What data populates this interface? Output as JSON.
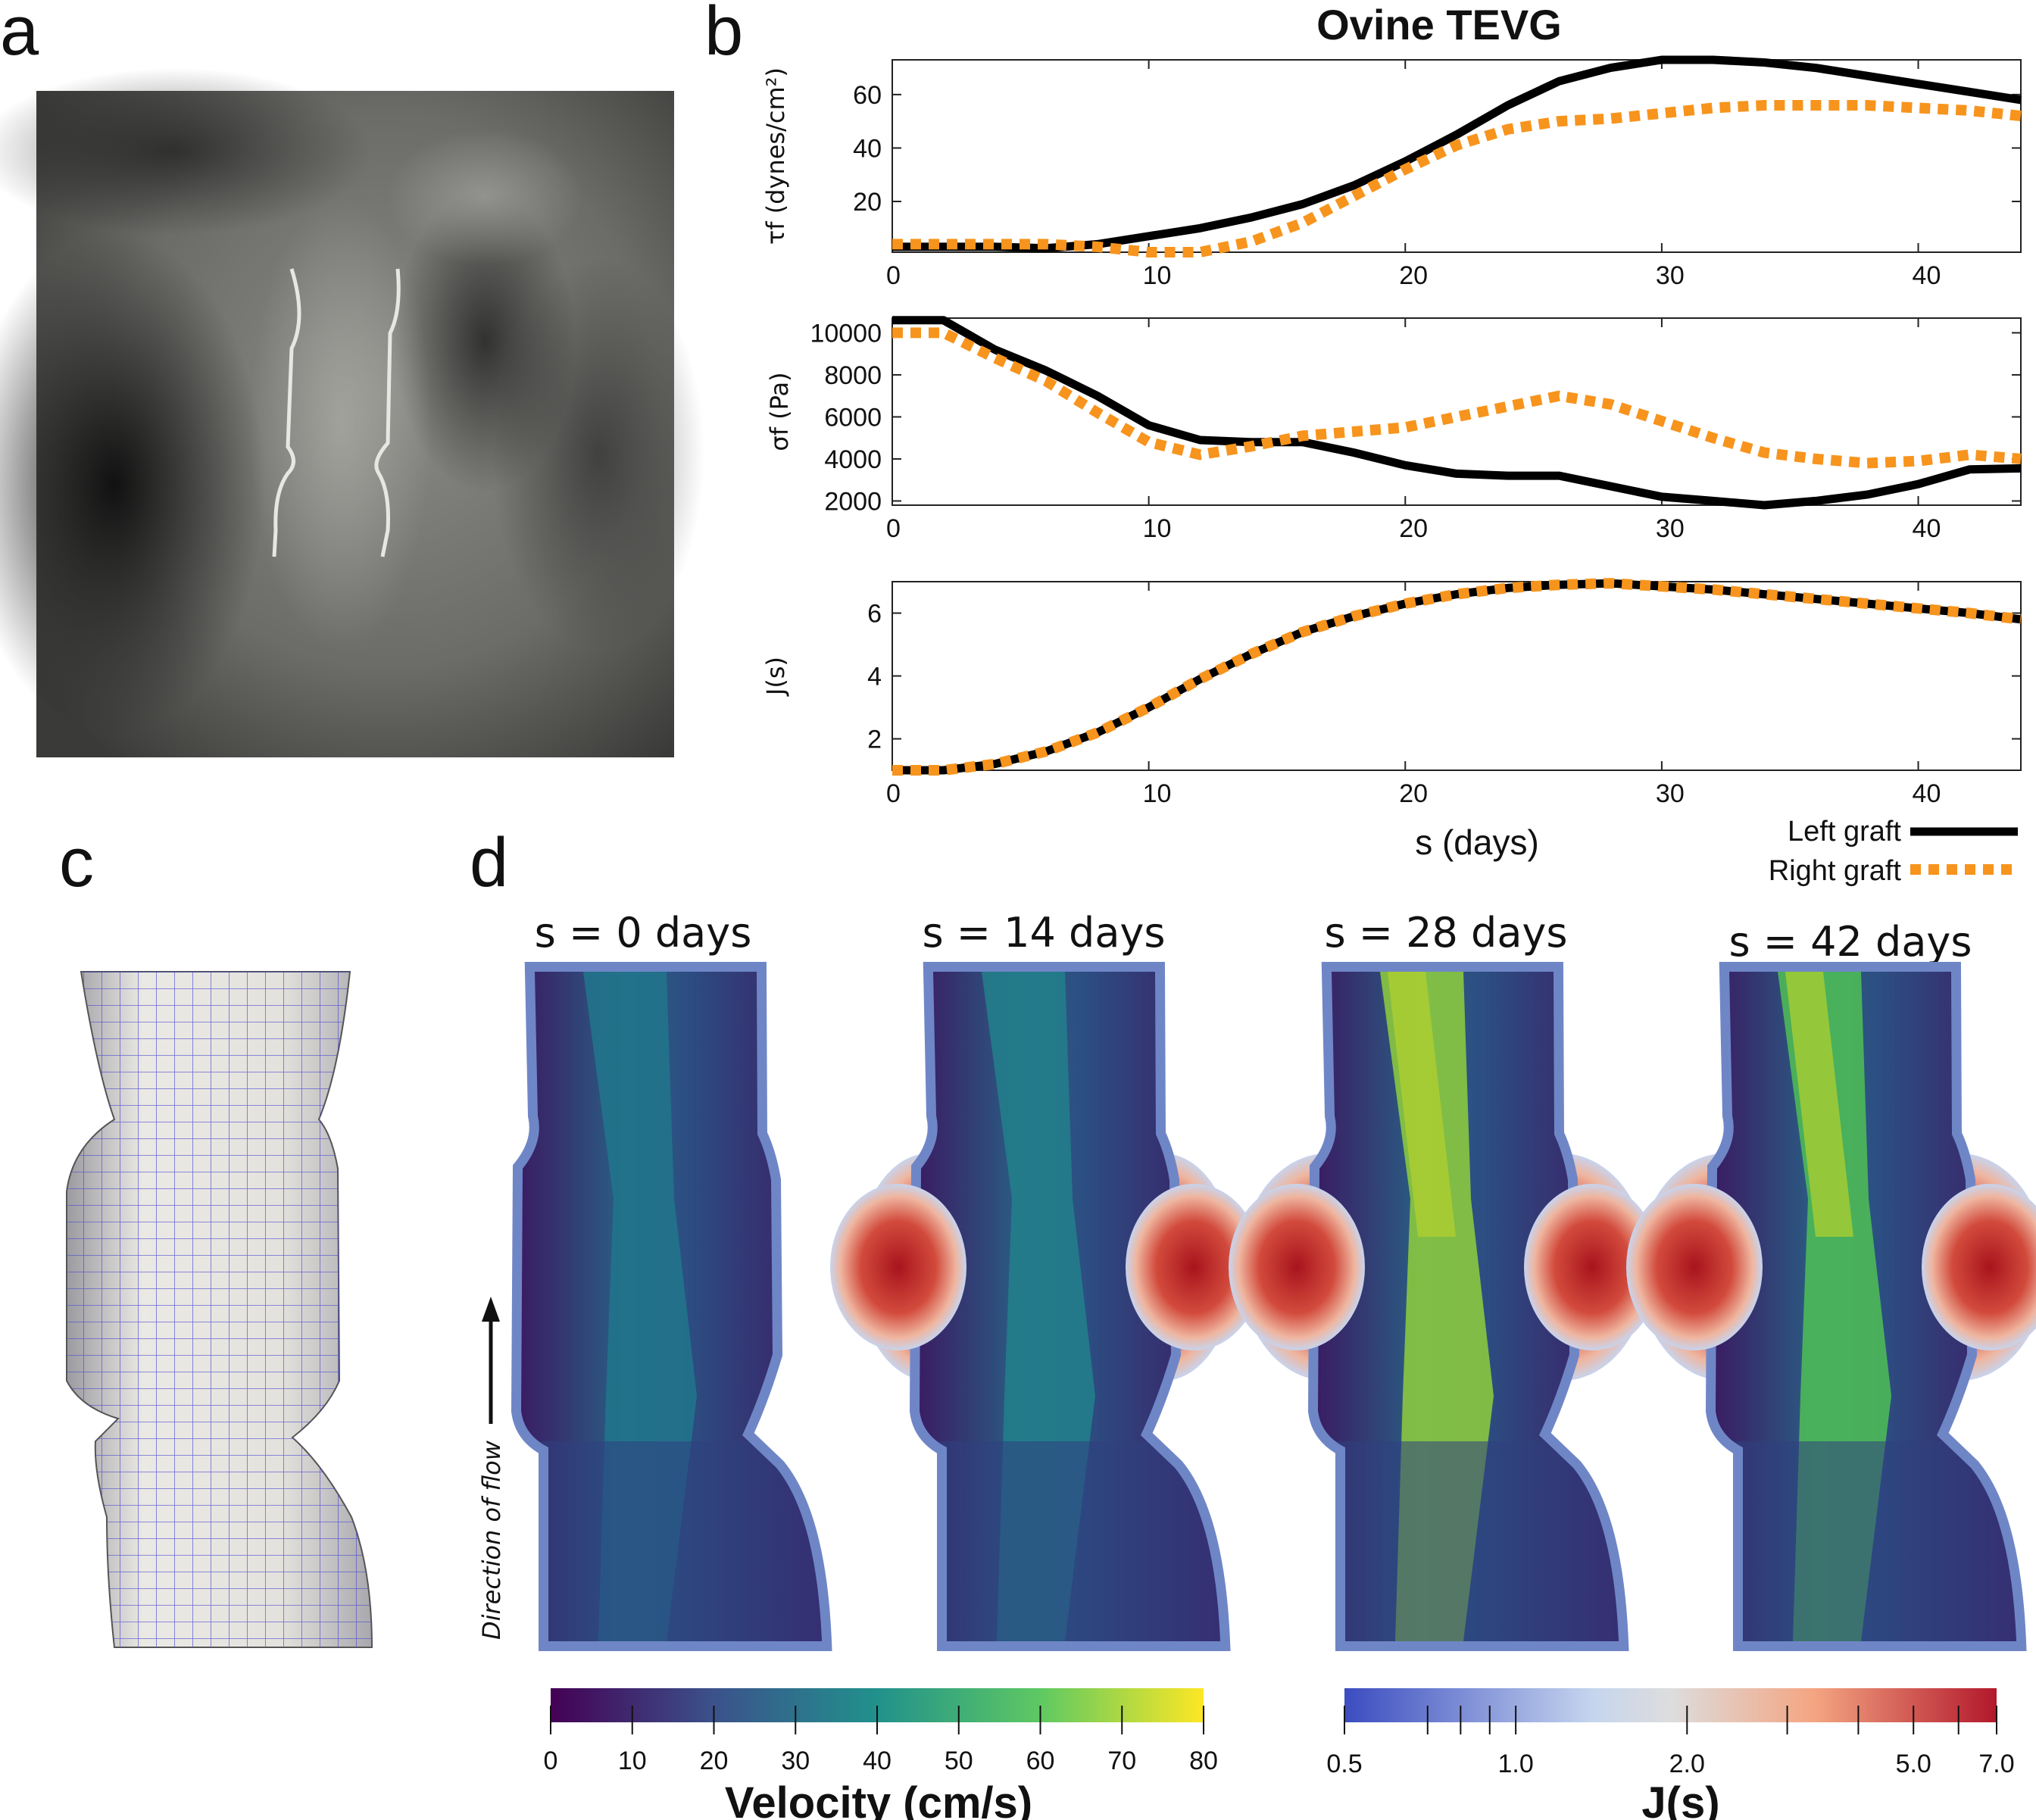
{
  "panel_labels": {
    "a": "a",
    "b": "b",
    "c": "c",
    "d": "d"
  },
  "chart_title": "Ovine TEVG",
  "chart_data": [
    {
      "type": "line",
      "ylabel": "τf (dynes/cm²)",
      "xlim": [
        0,
        44
      ],
      "ylim": [
        1,
        73
      ],
      "xticks": [
        0,
        10,
        20,
        30,
        40
      ],
      "yticks": [
        20,
        40,
        60
      ],
      "x": [
        0,
        2,
        4,
        6,
        8,
        10,
        12,
        14,
        16,
        18,
        20,
        22,
        24,
        26,
        28,
        30,
        32,
        34,
        36,
        38,
        40,
        42,
        44
      ],
      "series": [
        {
          "name": "Left graft",
          "color": "#000000",
          "style": "solid",
          "values": [
            3,
            3,
            3,
            2.5,
            4,
            7,
            10,
            14,
            19,
            26,
            35,
            45,
            56,
            65,
            70,
            73,
            73,
            72,
            70,
            67,
            64,
            61,
            58
          ]
        },
        {
          "name": "Right graft",
          "color": "#f7941d",
          "style": "dotted",
          "values": [
            4,
            4,
            4,
            4,
            3,
            1,
            1,
            5,
            12,
            22,
            32,
            41,
            47,
            50,
            51,
            53,
            55,
            56,
            56,
            56,
            55,
            54,
            52
          ]
        }
      ]
    },
    {
      "type": "line",
      "ylabel": "σf (Pa)",
      "xlim": [
        0,
        44
      ],
      "ylim": [
        1800,
        10700
      ],
      "xticks": [
        0,
        10,
        20,
        30,
        40
      ],
      "yticks": [
        2000,
        4000,
        6000,
        8000,
        10000
      ],
      "x": [
        0,
        2,
        4,
        6,
        8,
        10,
        12,
        14,
        16,
        18,
        20,
        22,
        24,
        26,
        28,
        30,
        32,
        34,
        36,
        38,
        40,
        42,
        44
      ],
      "series": [
        {
          "name": "Left graft",
          "color": "#000000",
          "style": "solid",
          "values": [
            10600,
            10600,
            9200,
            8200,
            7000,
            5600,
            4900,
            4800,
            4800,
            4300,
            3700,
            3300,
            3200,
            3200,
            2700,
            2200,
            2000,
            1800,
            2000,
            2300,
            2800,
            3500,
            3550
          ]
        },
        {
          "name": "Right graft",
          "color": "#f7941d",
          "style": "dotted",
          "values": [
            10000,
            10000,
            8800,
            7700,
            6200,
            4800,
            4200,
            4600,
            5100,
            5300,
            5500,
            6000,
            6500,
            7000,
            6600,
            5800,
            5000,
            4300,
            4000,
            3800,
            3900,
            4200,
            4000
          ]
        }
      ]
    },
    {
      "type": "line",
      "ylabel": "J(s)",
      "xlabel": "s (days)",
      "xlim": [
        0,
        44
      ],
      "ylim": [
        1,
        7
      ],
      "xticks": [
        0,
        10,
        20,
        30,
        40
      ],
      "yticks": [
        2,
        4,
        6
      ],
      "x": [
        0,
        2,
        4,
        6,
        8,
        10,
        12,
        14,
        16,
        18,
        20,
        22,
        24,
        26,
        28,
        30,
        32,
        34,
        36,
        38,
        40,
        42,
        44
      ],
      "series": [
        {
          "name": "Left graft",
          "color": "#000000",
          "style": "solid",
          "values": [
            1.0,
            1.0,
            1.2,
            1.6,
            2.2,
            3.0,
            3.9,
            4.7,
            5.4,
            5.9,
            6.3,
            6.6,
            6.8,
            6.9,
            6.95,
            6.85,
            6.75,
            6.6,
            6.45,
            6.3,
            6.15,
            6.0,
            5.8
          ]
        },
        {
          "name": "Right graft",
          "color": "#f7941d",
          "style": "dotted",
          "values": [
            1.0,
            1.0,
            1.2,
            1.6,
            2.2,
            3.0,
            3.9,
            4.7,
            5.4,
            5.9,
            6.3,
            6.6,
            6.8,
            6.9,
            6.95,
            6.85,
            6.75,
            6.6,
            6.45,
            6.3,
            6.15,
            6.0,
            5.8
          ]
        }
      ]
    }
  ],
  "legend": {
    "placement": "bottom-right",
    "left": "Left graft",
    "right": "Right graft"
  },
  "simulation": {
    "titles": [
      "s = 0 days",
      "s = 14 days",
      "s = 28 days",
      "s = 42 days"
    ],
    "flow_label": "Direction of flow"
  },
  "colorbars": {
    "velocity": {
      "label": "Velocity (cm/s)",
      "ticks": [
        "0",
        "10",
        "20",
        "30",
        "40",
        "50",
        "60",
        "70",
        "80"
      ],
      "colors": [
        "#440154",
        "#3b528b",
        "#21918c",
        "#5ec962",
        "#fde725"
      ]
    },
    "j": {
      "label": "J(s)",
      "scale": "log",
      "ticks": [
        "0.5",
        "1.0",
        "2.0",
        "5.0",
        "7.0"
      ],
      "minor_ticks": [
        0.7,
        0.8,
        0.9,
        3,
        4,
        6
      ],
      "colors": [
        "#3b4cc0",
        "#c5d5ee",
        "#dddddd",
        "#f4a582",
        "#b2182b"
      ]
    }
  }
}
